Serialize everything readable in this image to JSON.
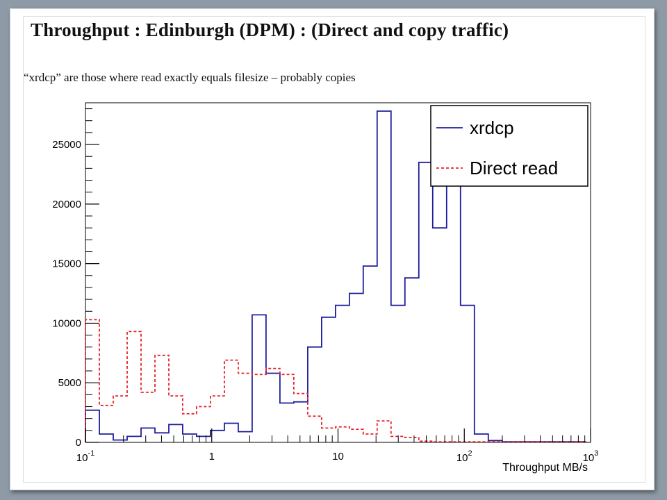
{
  "slide": {
    "title": "Throughput : Edinburgh (DPM)  : (Direct and copy traffic)",
    "subtitle": "“xrdcp” are those where read exactly equals filesize – probably copies"
  },
  "chart_data": {
    "type": "line",
    "style": "histogram-steps",
    "xlabel": "Throughput MB/s",
    "ylabel": "",
    "x_scale": "log",
    "xlim": [
      0.1,
      1000
    ],
    "ylim": [
      0,
      28500
    ],
    "x_ticks": [
      {
        "value": 0.1,
        "base": "10",
        "exp": "-1"
      },
      {
        "value": 1,
        "label": "1"
      },
      {
        "value": 10,
        "label": "10"
      },
      {
        "value": 100,
        "base": "10",
        "exp": "2"
      },
      {
        "value": 1000,
        "base": "10",
        "exp": "3"
      }
    ],
    "y_ticks": [
      0,
      5000,
      10000,
      15000,
      20000,
      25000
    ],
    "y_tick_labels": [
      "0",
      "5000",
      "10000",
      "15000",
      "20000",
      "25000"
    ],
    "legend": {
      "position": "top-right",
      "entries": [
        "xrdcp",
        "Direct read"
      ]
    },
    "series": [
      {
        "name": "xrdcp",
        "color": "#1f1f9e",
        "line_style": "solid",
        "bin_edges": [
          0.1,
          0.1288,
          0.1659,
          0.2138,
          0.2754,
          0.3548,
          0.4571,
          0.5888,
          0.7586,
          0.9772,
          1.2589,
          1.6218,
          2.0893,
          2.6915,
          3.4674,
          4.4668,
          5.7544,
          7.4131,
          9.5499,
          12.3027,
          15.8489,
          20.4174,
          26.3027,
          33.8844,
          43.6516,
          56.2341,
          72.4436,
          93.3254,
          120.226,
          154.882,
          199.526,
          257.04,
          331.131,
          426.58,
          549.541,
          707.946,
          912.011
        ],
        "values": [
          2700,
          700,
          200,
          500,
          1200,
          800,
          1500,
          700,
          500,
          1000,
          1600,
          900,
          10700,
          5800,
          3300,
          3400,
          8000,
          10500,
          11500,
          12500,
          14800,
          27800,
          11500,
          13800,
          23500,
          18000,
          22000,
          11500,
          700,
          150,
          50,
          50,
          50,
          50,
          50,
          50
        ]
      },
      {
        "name": "Direct read",
        "color": "#e8232a",
        "line_style": "dashed",
        "bin_edges": [
          0.1,
          0.1288,
          0.1659,
          0.2138,
          0.2754,
          0.3548,
          0.4571,
          0.5888,
          0.7586,
          0.9772,
          1.2589,
          1.6218,
          2.0893,
          2.6915,
          3.4674,
          4.4668,
          5.7544,
          7.4131,
          9.5499,
          12.3027,
          15.8489,
          20.4174,
          26.3027,
          33.8844,
          43.6516,
          56.2341,
          72.4436,
          93.3254,
          120.226,
          154.882,
          199.526,
          257.04,
          331.131,
          426.58,
          549.541,
          707.946,
          912.011
        ],
        "values": [
          10300,
          3100,
          3900,
          9300,
          4200,
          7300,
          3900,
          2400,
          3000,
          3900,
          6900,
          5800,
          5700,
          6200,
          5700,
          4100,
          2200,
          1200,
          1300,
          1100,
          700,
          1800,
          500,
          400,
          100,
          50,
          50,
          50,
          50,
          50,
          50,
          50,
          50,
          50,
          50,
          50
        ]
      }
    ]
  }
}
